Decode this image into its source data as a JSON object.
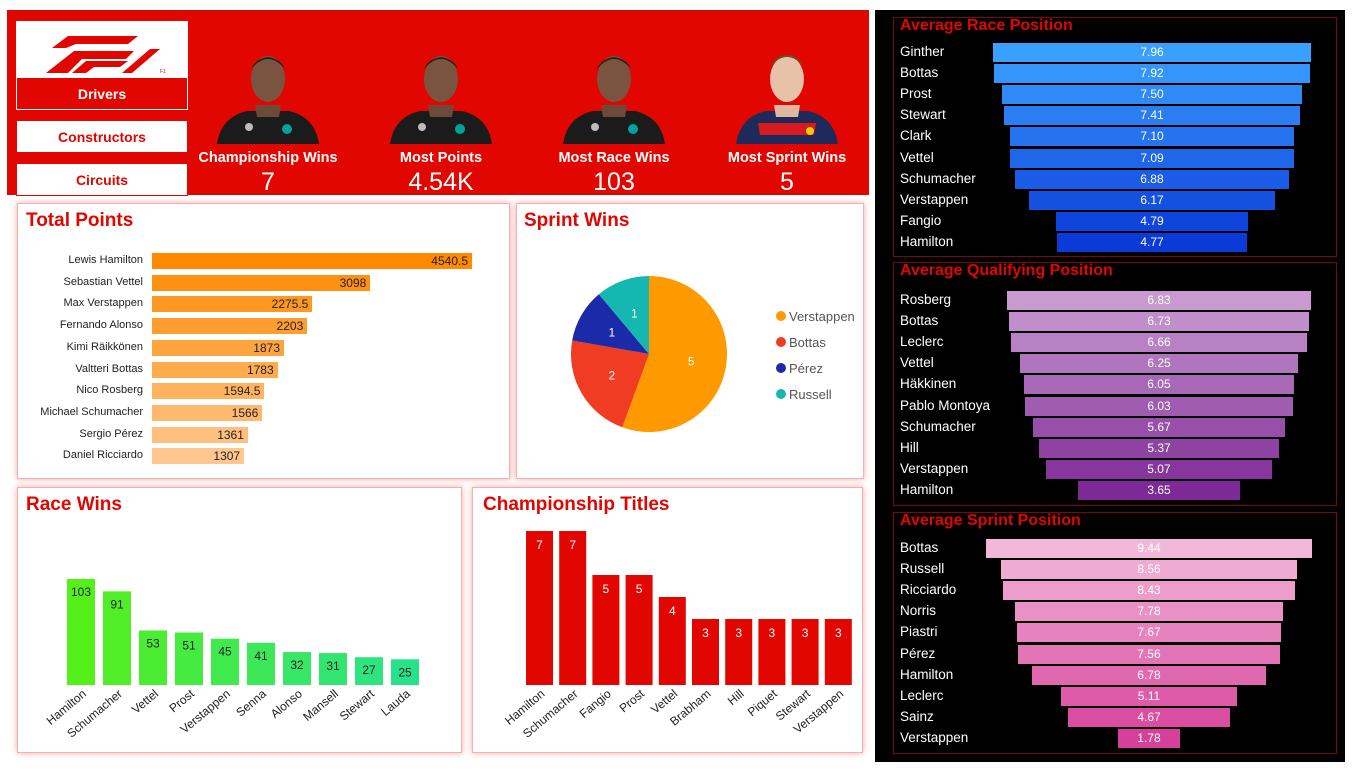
{
  "brand": {
    "logo_text": "F1",
    "accent": "#e10600"
  },
  "nav": [
    {
      "label": "Drivers",
      "active": true
    },
    {
      "label": "Constructors",
      "active": false
    },
    {
      "label": "Circuits",
      "active": false
    }
  ],
  "kpis": [
    {
      "label": "Championship Wins",
      "value": "7",
      "photo": "driver-portrait-hamilton"
    },
    {
      "label": "Most Points",
      "value": "4.54K",
      "photo": "driver-portrait-hamilton"
    },
    {
      "label": "Most Race Wins",
      "value": "103",
      "photo": "driver-portrait-hamilton"
    },
    {
      "label": "Most Sprint Wins",
      "value": "5",
      "photo": "driver-portrait-verstappen"
    }
  ],
  "chart_data": [
    {
      "id": "total_points",
      "type": "bar",
      "orientation": "horizontal",
      "title": "Total Points",
      "categories": [
        "Lewis Hamilton",
        "Sebastian Vettel",
        "Max Verstappen",
        "Fernando Alonso",
        "Kimi Räikkönen",
        "Valtteri Bottas",
        "Nico Rosberg",
        "Michael Schumacher",
        "Sergio Pérez",
        "Daniel Ricciardo"
      ],
      "values": [
        4540.5,
        3098,
        2275.5,
        2203,
        1873,
        1783,
        1594.5,
        1566,
        1361,
        1307
      ],
      "labels": [
        "4540.5",
        "3098",
        "2275.5",
        "2203",
        "1873",
        "1783",
        "1594.5",
        "1566",
        "1361",
        "1307"
      ],
      "color_start": "#ff8a00",
      "color_end": "#ffc78f"
    },
    {
      "id": "sprint_wins",
      "type": "pie",
      "title": "Sprint Wins",
      "categories": [
        "Verstappen",
        "Bottas",
        "Pérez",
        "Russell"
      ],
      "values": [
        5,
        2,
        1,
        1
      ],
      "colors": [
        "#ff9900",
        "#f03c22",
        "#1a2aa8",
        "#14b8b0"
      ]
    },
    {
      "id": "race_wins",
      "type": "bar",
      "title": "Race Wins",
      "categories": [
        "Hamilton",
        "Schumacher",
        "Vettel",
        "Prost",
        "Verstappen",
        "Senna",
        "Alonso",
        "Mansell",
        "Stewart",
        "Lauda"
      ],
      "values": [
        103,
        91,
        53,
        51,
        45,
        41,
        32,
        31,
        27,
        25
      ],
      "color_start": "#55f01a",
      "color_end": "#28e28a"
    },
    {
      "id": "championship_titles",
      "type": "bar",
      "title": "Championship Titles",
      "categories": [
        "Hamilton",
        "Schumacher",
        "Fangio",
        "Prost",
        "Vettel",
        "Brabham",
        "Hill",
        "Piquet",
        "Stewart",
        "Verstappen"
      ],
      "values": [
        7,
        7,
        5,
        5,
        4,
        3,
        3,
        3,
        3,
        3
      ],
      "color": "#e10600"
    },
    {
      "id": "avg_race_position",
      "type": "bar",
      "orientation": "horizontal-funnel",
      "title": "Average Race Position",
      "categories": [
        "Ginther",
        "Bottas",
        "Prost",
        "Stewart",
        "Clark",
        "Vettel",
        "Schumacher",
        "Verstappen",
        "Fangio",
        "Hamilton"
      ],
      "values": [
        7.96,
        7.92,
        7.5,
        7.41,
        7.1,
        7.09,
        6.88,
        6.17,
        4.79,
        4.77
      ],
      "labels": [
        "7.96",
        "7.92",
        "7.50",
        "7.41",
        "7.10",
        "7.09",
        "6.88",
        "6.17",
        "4.79",
        "4.77"
      ],
      "color_start": "#3aa0ff",
      "color_end": "#0a3ad8"
    },
    {
      "id": "avg_qualifying_position",
      "type": "bar",
      "orientation": "horizontal-funnel",
      "title": "Average Qualifying Position",
      "categories": [
        "Rosberg",
        "Bottas",
        "Leclerc",
        "Vettel",
        "Häkkinen",
        "Pablo Montoya",
        "Schumacher",
        "Hill",
        "Verstappen",
        "Hamilton"
      ],
      "values": [
        6.83,
        6.73,
        6.66,
        6.25,
        6.05,
        6.03,
        5.67,
        5.37,
        5.07,
        3.65
      ],
      "labels": [
        "6.83",
        "6.73",
        "6.66",
        "6.25",
        "6.05",
        "6.03",
        "5.67",
        "5.37",
        "5.07",
        "3.65"
      ],
      "color_start": "#c89ad0",
      "color_end": "#7e2a96"
    },
    {
      "id": "avg_sprint_position",
      "type": "bar",
      "orientation": "horizontal-funnel",
      "title": "Average Sprint Position",
      "categories": [
        "Bottas",
        "Russell",
        "Ricciardo",
        "Norris",
        "Piastri",
        "Pérez",
        "Hamilton",
        "Leclerc",
        "Sainz",
        "Verstappen"
      ],
      "values": [
        9.44,
        8.56,
        8.43,
        7.78,
        7.67,
        7.56,
        6.78,
        5.11,
        4.67,
        1.78
      ],
      "labels": [
        "9.44",
        "8.56",
        "8.43",
        "7.78",
        "7.67",
        "7.56",
        "6.78",
        "5.11",
        "4.67",
        "1.78"
      ],
      "color_start": "#f2b8da",
      "color_end": "#d7409a"
    }
  ]
}
